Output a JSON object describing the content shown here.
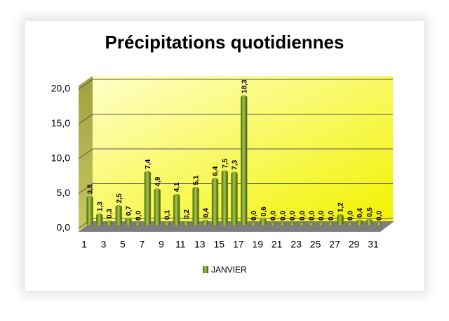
{
  "chart_data": {
    "type": "bar",
    "title": "Précipitations quotidiennes",
    "categories": [
      "1",
      null,
      "3",
      null,
      "5",
      null,
      "7",
      null,
      "9",
      null,
      "11",
      null,
      "13",
      null,
      "15",
      null,
      "17",
      null,
      "19",
      null,
      "21",
      null,
      "23",
      null,
      "25",
      null,
      "27",
      null,
      "29",
      null,
      "31"
    ],
    "series": [
      {
        "name": "JANVIER",
        "color": "#7a9a1e",
        "values": [
          3.8,
          1.3,
          0.3,
          2.5,
          0.7,
          0.0,
          7.4,
          4.9,
          0.1,
          4.1,
          0.2,
          5.1,
          0.4,
          6.4,
          7.5,
          7.3,
          18.3,
          0.0,
          0.6,
          0.0,
          0.0,
          0.0,
          0.0,
          0.0,
          0.0,
          0.0,
          1.2,
          0.0,
          0.4,
          0.5,
          0.0
        ],
        "value_labels": [
          "3,8",
          "1,3",
          "0,3",
          "2,5",
          "0,7",
          "0,0",
          "7,4",
          "4,9",
          "0,1",
          "4,1",
          "0,2",
          "5,1",
          "0,4",
          "6,4",
          "7,5",
          "7,3",
          "18,3",
          "0,0",
          "0,6",
          "0,0",
          "0,0",
          "0,0",
          "0,0",
          "0,0",
          "0,0",
          "0,0",
          "1,2",
          "0,0",
          "0,4",
          "0,5",
          "0,0"
        ]
      }
    ],
    "ylim": [
      0,
      20
    ],
    "yticks": [
      {
        "value": 0,
        "label": "0,0"
      },
      {
        "value": 5,
        "label": "5,0"
      },
      {
        "value": 10,
        "label": "10,0"
      },
      {
        "value": 15,
        "label": "15,0"
      },
      {
        "value": 20,
        "label": "20,0"
      }
    ],
    "grid": true
  }
}
